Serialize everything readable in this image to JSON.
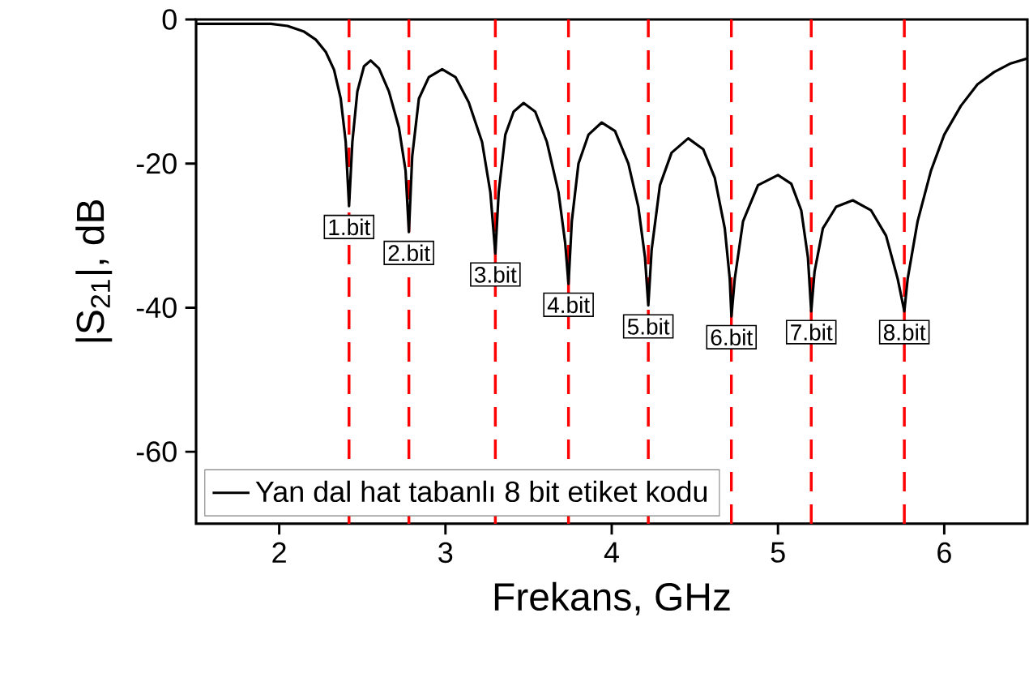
{
  "chart_data": {
    "type": "line",
    "xlabel": "Frekans, GHz",
    "ylabel": "|S$_{21}$|, dB",
    "xlim": [
      1.5,
      6.5
    ],
    "ylim": [
      -70,
      0
    ],
    "xticks": [
      2,
      3,
      4,
      5,
      6
    ],
    "yticks": [
      -60,
      -40,
      -20,
      0
    ],
    "grid": false,
    "legend": "bottom left",
    "marker": "none",
    "line_style": "solid",
    "series": [
      {
        "name": "Yan dal hat tabanlı 8 bit etiket kodu",
        "color": "#000000",
        "x": [
          1.5,
          1.8,
          1.95,
          2.05,
          2.15,
          2.22,
          2.28,
          2.33,
          2.37,
          2.4,
          2.42,
          2.44,
          2.47,
          2.51,
          2.55,
          2.6,
          2.66,
          2.72,
          2.76,
          2.78,
          2.8,
          2.84,
          2.9,
          2.98,
          3.06,
          3.14,
          3.22,
          3.27,
          3.3,
          3.32,
          3.36,
          3.41,
          3.47,
          3.54,
          3.61,
          3.68,
          3.72,
          3.74,
          3.76,
          3.8,
          3.86,
          3.94,
          4.02,
          4.1,
          4.16,
          4.2,
          4.22,
          4.24,
          4.29,
          4.36,
          4.46,
          4.55,
          4.62,
          4.68,
          4.71,
          4.72,
          4.74,
          4.79,
          4.88,
          5.0,
          5.08,
          5.14,
          5.18,
          5.2,
          5.22,
          5.27,
          5.35,
          5.45,
          5.56,
          5.65,
          5.72,
          5.76,
          5.78,
          5.84,
          5.92,
          6.0,
          6.1,
          6.2,
          6.3,
          6.4,
          6.5
        ],
        "values": [
          -0.6,
          -0.6,
          -0.6,
          -0.9,
          -1.7,
          -2.8,
          -4.5,
          -7,
          -11,
          -17,
          -25.9,
          -17,
          -10,
          -6.5,
          -5.7,
          -6.8,
          -10,
          -15,
          -21,
          -29.5,
          -19,
          -11,
          -8,
          -6.9,
          -8,
          -11.5,
          -17,
          -24,
          -32.5,
          -24,
          -16,
          -12.8,
          -11.6,
          -12.8,
          -17,
          -24,
          -31,
          -36.7,
          -28,
          -20,
          -16,
          -14.3,
          -15.5,
          -20,
          -26,
          -33,
          -39.7,
          -32,
          -23,
          -18.5,
          -16.5,
          -18,
          -22,
          -29,
          -36,
          -41.2,
          -36,
          -28,
          -23,
          -21.6,
          -22.8,
          -26.5,
          -33,
          -40.5,
          -35,
          -29,
          -26,
          -25.1,
          -26.5,
          -30,
          -36,
          -40.5,
          -36,
          -28,
          -21,
          -16,
          -12,
          -9,
          -7.3,
          -6.1,
          -5.4
        ]
      }
    ],
    "ref_lines": [
      {
        "axis": "x",
        "value": 2.42,
        "color": "#ff0000",
        "line_style": "dashed"
      },
      {
        "axis": "x",
        "value": 2.78,
        "color": "#ff0000",
        "line_style": "dashed"
      },
      {
        "axis": "x",
        "value": 3.3,
        "color": "#ff0000",
        "line_style": "dashed"
      },
      {
        "axis": "x",
        "value": 3.74,
        "color": "#ff0000",
        "line_style": "dashed"
      },
      {
        "axis": "x",
        "value": 4.22,
        "color": "#ff0000",
        "line_style": "dashed"
      },
      {
        "axis": "x",
        "value": 4.72,
        "color": "#ff0000",
        "line_style": "dashed"
      },
      {
        "axis": "x",
        "value": 5.2,
        "color": "#ff0000",
        "line_style": "dashed"
      },
      {
        "axis": "x",
        "value": 5.76,
        "color": "#ff0000",
        "line_style": "dashed"
      }
    ],
    "annotations": [
      {
        "text": "1.bit",
        "x": 2.42,
        "y": -25.9
      },
      {
        "text": "2.bit",
        "x": 2.78,
        "y": -29.5
      },
      {
        "text": "3.bit",
        "x": 3.3,
        "y": -32.5
      },
      {
        "text": "4.bit",
        "x": 3.74,
        "y": -36.7
      },
      {
        "text": "5.bit",
        "x": 4.22,
        "y": -39.7
      },
      {
        "text": "6.bit",
        "x": 4.72,
        "y": -41.2
      },
      {
        "text": "7.bit",
        "x": 5.2,
        "y": -40.5
      },
      {
        "text": "8.bit",
        "x": 5.76,
        "y": -40.5
      }
    ]
  }
}
